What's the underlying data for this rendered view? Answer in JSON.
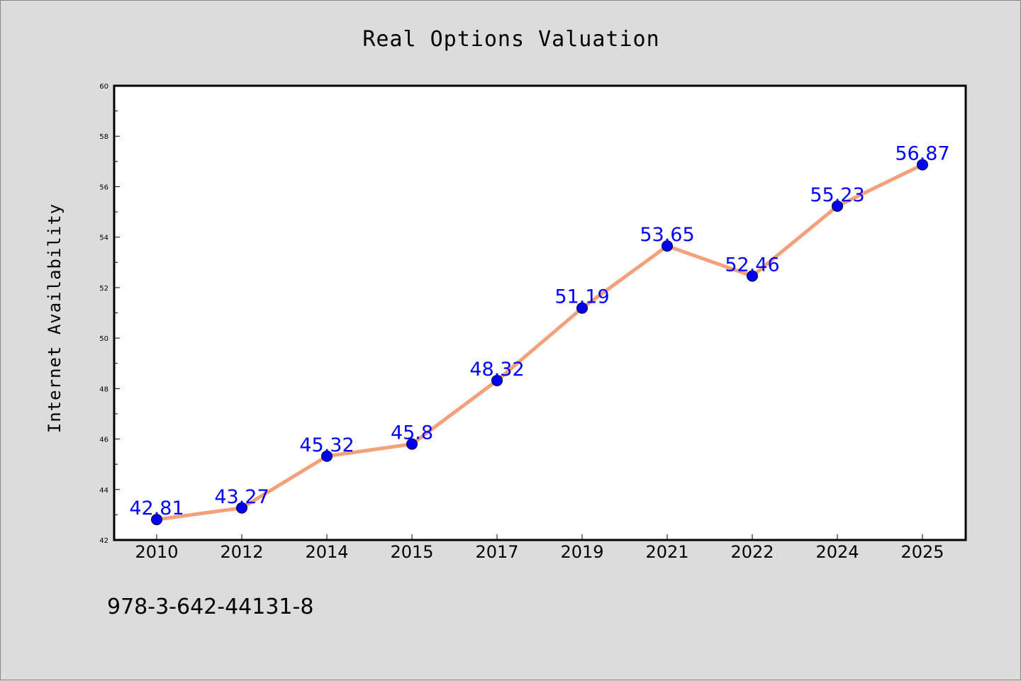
{
  "chart_data": {
    "type": "line",
    "title": "Real Options Valuation",
    "xlabel": "",
    "ylabel": "Internet Availability",
    "categories": [
      "2010",
      "2012",
      "2014",
      "2015",
      "2017",
      "2019",
      "2021",
      "2022",
      "2024",
      "2025"
    ],
    "values": [
      42.81,
      43.27,
      45.32,
      45.8,
      48.32,
      51.19,
      53.65,
      52.46,
      55.23,
      56.87
    ],
    "data_labels": [
      "42.81",
      "43.27",
      "45.32",
      "45.8",
      "48.32",
      "51.19",
      "53.65",
      "52.46",
      "55.23",
      "56.87"
    ],
    "ylim": [
      42,
      60
    ],
    "yticks": [
      42,
      44,
      46,
      48,
      50,
      52,
      54,
      56,
      58,
      60
    ],
    "grid": false,
    "legend": "none",
    "line_color": "#f4a07a",
    "marker_color": "#0000ee",
    "label_color": "#0000ff"
  },
  "annotation": "978-3-642-44131-8"
}
